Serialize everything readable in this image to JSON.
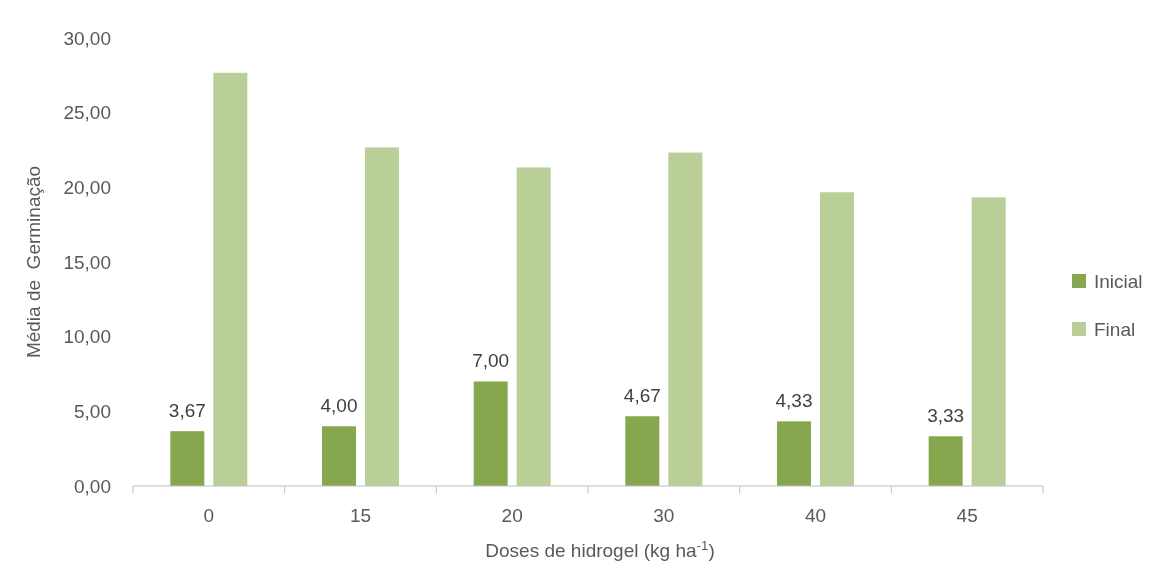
{
  "chart_data": {
    "type": "bar",
    "xlabel": "Doses de hidrogel (kg ha$^{-1}$)",
    "ylabel": "Média de  Germinação",
    "categories": [
      "0",
      "15",
      "20",
      "30",
      "40",
      "45"
    ],
    "series": [
      {
        "name": "Inicial",
        "color": "#87a74e",
        "values": [
          3.67,
          4.0,
          7.0,
          4.67,
          4.33,
          3.33
        ],
        "value_labels": [
          "3,67",
          "4,00",
          "7,00",
          "4,67",
          "4,33",
          "3,33"
        ]
      },
      {
        "name": "Final",
        "color": "#bacf98",
        "values": [
          27.67,
          22.67,
          21.33,
          22.33,
          19.67,
          19.33
        ]
      }
    ],
    "ylim": [
      0,
      30
    ],
    "yticks": [
      {
        "value": 0,
        "label": "0,00"
      },
      {
        "value": 5,
        "label": "5,00"
      },
      {
        "value": 10,
        "label": "10,00"
      },
      {
        "value": 15,
        "label": "15,00"
      },
      {
        "value": 20,
        "label": "20,00"
      },
      {
        "value": 25,
        "label": "25,00"
      },
      {
        "value": 30,
        "label": "30,00"
      }
    ],
    "grid": false,
    "legend": "right"
  }
}
